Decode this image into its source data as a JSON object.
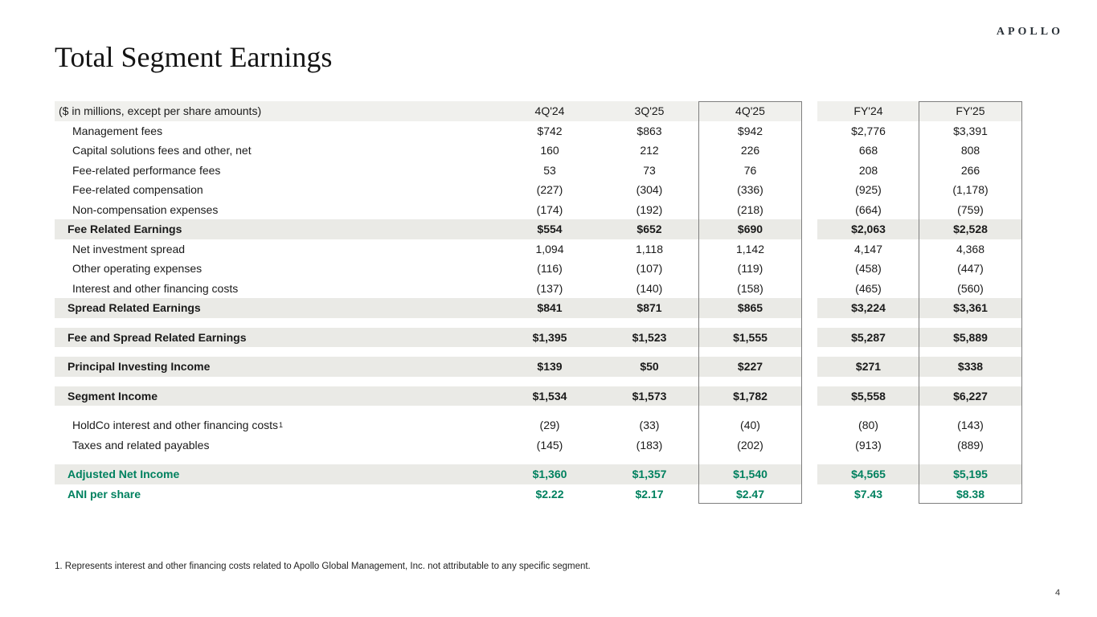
{
  "brand": {
    "logo": "APOLLO"
  },
  "page": {
    "title": "Total Segment Earnings",
    "footnote": "1. Represents interest and other financing costs related to Apollo Global Management, Inc. not attributable to any specific segment.",
    "page_number": "4"
  },
  "colors": {
    "accent_green": "#00815F",
    "band": "#EAEAE6",
    "header_band": "#F0F0ED",
    "box_border": "#7F7F7F"
  },
  "table": {
    "columns": [
      "($ in millions, except per share amounts)",
      "4Q'24",
      "3Q'25",
      "4Q'25",
      "FY'24",
      "FY'25"
    ],
    "boxed_columns": [
      "4Q'25",
      "FY'25"
    ],
    "rows": [
      {
        "label": "Management fees",
        "style": "item",
        "values": [
          "$742",
          "$863",
          "$942",
          "$2,776",
          "$3,391"
        ]
      },
      {
        "label": "Capital solutions fees and other, net",
        "style": "item",
        "values": [
          "160",
          "212",
          "226",
          "668",
          "808"
        ]
      },
      {
        "label": "Fee-related performance fees",
        "style": "item",
        "values": [
          "53",
          "73",
          "76",
          "208",
          "266"
        ]
      },
      {
        "label": "Fee-related compensation",
        "style": "item",
        "values": [
          "(227)",
          "(304)",
          "(336)",
          "(925)",
          "(1,178)"
        ]
      },
      {
        "label": "Non-compensation expenses",
        "style": "item",
        "values": [
          "(174)",
          "(192)",
          "(218)",
          "(664)",
          "(759)"
        ]
      },
      {
        "label": "Fee Related Earnings",
        "style": "total",
        "values": [
          "$554",
          "$652",
          "$690",
          "$2,063",
          "$2,528"
        ]
      },
      {
        "label": "Net investment spread",
        "style": "item",
        "values": [
          "1,094",
          "1,118",
          "1,142",
          "4,147",
          "4,368"
        ]
      },
      {
        "label": "Other operating expenses",
        "style": "item",
        "values": [
          "(116)",
          "(107)",
          "(119)",
          "(458)",
          "(447)"
        ]
      },
      {
        "label": "Interest and other financing costs",
        "style": "item",
        "values": [
          "(137)",
          "(140)",
          "(158)",
          "(465)",
          "(560)"
        ]
      },
      {
        "label": "Spread Related Earnings",
        "style": "total",
        "values": [
          "$841",
          "$871",
          "$865",
          "$3,224",
          "$3,361"
        ]
      },
      {
        "label": "Fee and Spread Related Earnings",
        "style": "total",
        "gap_before": true,
        "values": [
          "$1,395",
          "$1,523",
          "$1,555",
          "$5,287",
          "$5,889"
        ]
      },
      {
        "label": "Principal Investing Income",
        "style": "total",
        "gap_before": true,
        "values": [
          "$139",
          "$50",
          "$227",
          "$271",
          "$338"
        ]
      },
      {
        "label": "Segment Income",
        "style": "total",
        "gap_before": true,
        "values": [
          "$1,534",
          "$1,573",
          "$1,782",
          "$5,558",
          "$6,227"
        ]
      },
      {
        "label": "HoldCo interest and other financing costs",
        "sup": "1",
        "style": "item",
        "gap_before": true,
        "values": [
          "(29)",
          "(33)",
          "(40)",
          "(80)",
          "(143)"
        ]
      },
      {
        "label": "Taxes and related payables",
        "style": "item",
        "values": [
          "(145)",
          "(183)",
          "(202)",
          "(913)",
          "(889)"
        ]
      },
      {
        "label": "Adjusted Net Income",
        "style": "total-green",
        "gap_before": true,
        "values": [
          "$1,360",
          "$1,357",
          "$1,540",
          "$4,565",
          "$5,195"
        ]
      },
      {
        "label": "ANI per share",
        "style": "green",
        "values": [
          "$2.22",
          "$2.17",
          "$2.47",
          "$7.43",
          "$8.38"
        ]
      }
    ]
  }
}
